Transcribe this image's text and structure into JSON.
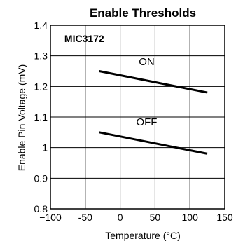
{
  "chart_data": {
    "type": "line",
    "title": "Enable Thresholds",
    "xlabel": "Temperature (°C)",
    "ylabel": "Enable Pin Voltage (mV)",
    "xlim": [
      -100,
      150
    ],
    "ylim": [
      0.8,
      1.4
    ],
    "x_ticks": [
      -100,
      -50,
      0,
      50,
      100,
      150
    ],
    "y_ticks": [
      0.8,
      0.9,
      1.0,
      1.1,
      1.2,
      1.3,
      1.4
    ],
    "x_tick_labels": [
      "−100",
      "-50",
      "0",
      "50",
      "100",
      "150"
    ],
    "y_tick_labels": [
      "0.8",
      "0.9",
      "1",
      "1.1",
      "1.2",
      "1.3",
      "1.4"
    ],
    "grid": true,
    "series": [
      {
        "name": "ON",
        "x": [
          -30,
          125
        ],
        "y": [
          1.25,
          1.18
        ]
      },
      {
        "name": "OFF",
        "x": [
          -30,
          125
        ],
        "y": [
          1.05,
          0.98
        ]
      }
    ],
    "annotations": [
      {
        "text": "MIC3172",
        "x": -80,
        "y": 1.345,
        "bold": true
      },
      {
        "text": "ON",
        "x": 38,
        "y": 1.27
      },
      {
        "text": "OFF",
        "x": 38,
        "y": 1.072
      }
    ]
  }
}
